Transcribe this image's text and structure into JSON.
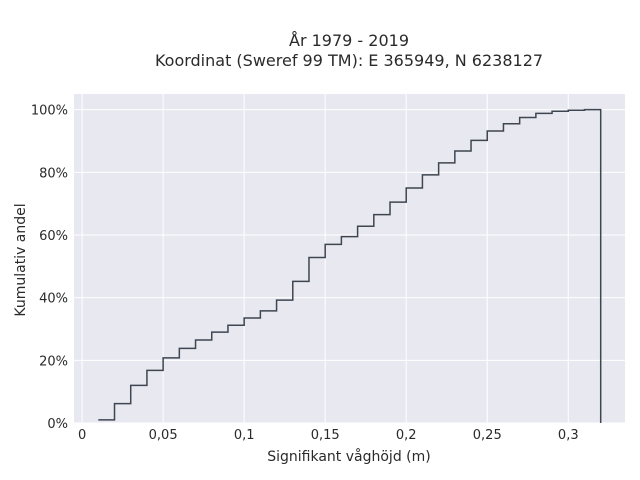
{
  "chart_data": {
    "type": "line",
    "step": true,
    "title": [
      "År 1979 - 2019",
      "Koordinat (Sweref 99 TM): E 365949, N 6238127"
    ],
    "xlabel": "Signifikant våghöjd (m)",
    "ylabel": "Kumulativ andel",
    "xlim": [
      -0.005,
      0.335
    ],
    "ylim": [
      0,
      1.05
    ],
    "x_ticks": [
      0,
      0.05,
      0.1,
      0.15,
      0.2,
      0.25,
      0.3
    ],
    "x_tick_labels": [
      "0",
      "0,05",
      "0,1",
      "0,15",
      "0,2",
      "0,25",
      "0,3"
    ],
    "y_ticks": [
      0,
      0.2,
      0.4,
      0.6,
      0.8,
      1.0
    ],
    "y_tick_labels": [
      "0%",
      "20%",
      "40%",
      "60%",
      "80%",
      "100%"
    ],
    "grid": true,
    "background": "#e8e8f0",
    "line_color": "#3d4651",
    "x": [
      0.01,
      0.02,
      0.03,
      0.04,
      0.05,
      0.06,
      0.07,
      0.08,
      0.09,
      0.1,
      0.11,
      0.12,
      0.13,
      0.14,
      0.15,
      0.16,
      0.17,
      0.18,
      0.19,
      0.2,
      0.21,
      0.22,
      0.23,
      0.24,
      0.25,
      0.26,
      0.27,
      0.28,
      0.29,
      0.3,
      0.31,
      0.32
    ],
    "y": [
      0.01,
      0.062,
      0.12,
      0.168,
      0.208,
      0.238,
      0.265,
      0.29,
      0.312,
      0.335,
      0.358,
      0.392,
      0.452,
      0.528,
      0.57,
      0.595,
      0.628,
      0.665,
      0.705,
      0.75,
      0.792,
      0.83,
      0.868,
      0.902,
      0.932,
      0.955,
      0.975,
      0.988,
      0.995,
      0.998,
      1.0,
      0.0
    ]
  }
}
